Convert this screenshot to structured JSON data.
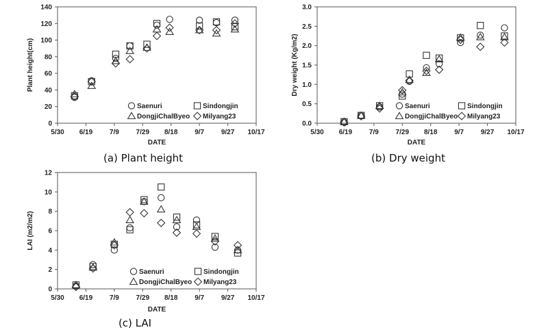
{
  "chart_data": [
    {
      "type": "scatter",
      "caption": "(a) Plant height",
      "xlabel": "DATE",
      "ylabel": "Plant height(cm)",
      "xticks": [
        "5/30",
        "6/19",
        "7/9",
        "7/29",
        "8/18",
        "9/7",
        "9/27",
        "10/17"
      ],
      "yticks": [
        "0",
        "20",
        "40",
        "60",
        "80",
        "100",
        "120",
        "140"
      ],
      "xlim": [
        0,
        140
      ],
      "ylim": [
        0,
        140
      ],
      "legend": "bottom-right",
      "series": [
        {
          "name": "Saenuri",
          "marker": "circle",
          "points": [
            [
              12,
              31
            ],
            [
              24,
              51
            ],
            [
              41,
              78
            ],
            [
              51,
              93
            ],
            [
              70,
              118
            ],
            [
              79,
              125
            ],
            [
              100,
              124
            ],
            [
              112,
              121
            ],
            [
              125,
              124
            ]
          ]
        },
        {
          "name": "Sindongjin",
          "marker": "square",
          "points": [
            [
              12,
              33
            ],
            [
              24,
              50
            ],
            [
              41,
              83
            ],
            [
              51,
              93
            ],
            [
              63,
              95
            ],
            [
              70,
              120
            ],
            [
              100,
              117
            ],
            [
              112,
              122
            ],
            [
              125,
              116
            ]
          ]
        },
        {
          "name": "DongjiChalByeo",
          "marker": "triangle",
          "points": [
            [
              12,
              35
            ],
            [
              24,
              45
            ],
            [
              41,
              75
            ],
            [
              51,
              87
            ],
            [
              63,
              91
            ],
            [
              70,
              113
            ],
            [
              79,
              110
            ],
            [
              100,
              112
            ],
            [
              112,
              108
            ],
            [
              125,
              113
            ]
          ]
        },
        {
          "name": "Milyang23",
          "marker": "diamond",
          "points": [
            [
              12,
              32
            ],
            [
              24,
              50
            ],
            [
              41,
              72
            ],
            [
              51,
              77
            ],
            [
              63,
              90
            ],
            [
              70,
              105
            ],
            [
              79,
              115
            ],
            [
              100,
              112
            ],
            [
              112,
              112
            ],
            [
              125,
              120
            ]
          ]
        }
      ]
    },
    {
      "type": "scatter",
      "caption": "(b) Dry weight",
      "xlabel": "DATE",
      "ylabel": "Dry weight (Kg/m2)",
      "xticks": [
        "5/30",
        "6/19",
        "7/9",
        "7/29",
        "8/18",
        "9/7",
        "9/27",
        "10/17"
      ],
      "yticks": [
        "0.0",
        "0.5",
        "1.0",
        "1.5",
        "2.0",
        "2.5",
        "3.0"
      ],
      "xlim": [
        0,
        140
      ],
      "ylim": [
        0,
        3.0
      ],
      "legend": "bottom-right",
      "series": [
        {
          "name": "Saenuri",
          "marker": "circle",
          "points": [
            [
              19,
              0.03
            ],
            [
              31,
              0.2
            ],
            [
              44,
              0.42
            ],
            [
              60,
              0.75
            ],
            [
              65,
              1.08
            ],
            [
              77,
              1.43
            ],
            [
              86,
              1.53
            ],
            [
              101,
              2.08
            ],
            [
              115,
              2.27
            ],
            [
              132,
              2.46
            ]
          ]
        },
        {
          "name": "Sindongjin",
          "marker": "square",
          "points": [
            [
              19,
              0.04
            ],
            [
              31,
              0.2
            ],
            [
              44,
              0.45
            ],
            [
              60,
              0.7
            ],
            [
              65,
              1.27
            ],
            [
              77,
              1.75
            ],
            [
              86,
              1.68
            ],
            [
              101,
              2.2
            ],
            [
              115,
              2.52
            ],
            [
              132,
              2.25
            ]
          ]
        },
        {
          "name": "DongjiChalByeo",
          "marker": "triangle",
          "points": [
            [
              19,
              0.04
            ],
            [
              31,
              0.2
            ],
            [
              44,
              0.45
            ],
            [
              60,
              0.8
            ],
            [
              65,
              1.12
            ],
            [
              77,
              1.3
            ],
            [
              86,
              1.65
            ],
            [
              101,
              2.21
            ],
            [
              115,
              2.22
            ],
            [
              132,
              2.22
            ]
          ]
        },
        {
          "name": "Milyang23",
          "marker": "diamond",
          "points": [
            [
              19,
              0.02
            ],
            [
              31,
              0.18
            ],
            [
              44,
              0.38
            ],
            [
              60,
              0.85
            ],
            [
              65,
              1.1
            ],
            [
              77,
              1.35
            ],
            [
              86,
              1.38
            ],
            [
              101,
              2.15
            ],
            [
              115,
              1.97
            ],
            [
              132,
              2.08
            ]
          ]
        }
      ]
    },
    {
      "type": "scatter",
      "caption": "(c) LAI",
      "xlabel": "DATE",
      "ylabel": "LAI (m2/m2)",
      "xticks": [
        "5/30",
        "6/19",
        "7/9",
        "7/29",
        "8/18",
        "9/7",
        "9/27",
        "10/17"
      ],
      "yticks": [
        "0",
        "2",
        "4",
        "6",
        "8",
        "10",
        "12"
      ],
      "xlim": [
        0,
        140
      ],
      "ylim": [
        0,
        12
      ],
      "legend": "bottom-right",
      "series": [
        {
          "name": "Saenuri",
          "marker": "circle",
          "points": [
            [
              13,
              0.3
            ],
            [
              25,
              2.5
            ],
            [
              40,
              4.0
            ],
            [
              51,
              6.3
            ],
            [
              61,
              9.0
            ],
            [
              73,
              9.4
            ],
            [
              84,
              6.4
            ],
            [
              98,
              7.1
            ],
            [
              111,
              4.3
            ],
            [
              127,
              4.0
            ]
          ]
        },
        {
          "name": "Sindongjin",
          "marker": "square",
          "points": [
            [
              13,
              0.4
            ],
            [
              25,
              2.3
            ],
            [
              40,
              4.6
            ],
            [
              51,
              6.1
            ],
            [
              61,
              9.2
            ],
            [
              73,
              10.5
            ],
            [
              84,
              7.4
            ],
            [
              98,
              6.6
            ],
            [
              111,
              5.4
            ],
            [
              127,
              3.7
            ]
          ]
        },
        {
          "name": "DongjiChalByeo",
          "marker": "triangle",
          "points": [
            [
              13,
              0.4
            ],
            [
              25,
              2.2
            ],
            [
              40,
              4.8
            ],
            [
              51,
              7.1
            ],
            [
              61,
              9.0
            ],
            [
              73,
              8.2
            ],
            [
              84,
              7.1
            ],
            [
              98,
              6.4
            ],
            [
              111,
              5.2
            ],
            [
              127,
              4.0
            ]
          ]
        },
        {
          "name": "Milyang23",
          "marker": "diamond",
          "points": [
            [
              13,
              0.2
            ],
            [
              25,
              2.1
            ],
            [
              40,
              4.5
            ],
            [
              51,
              7.9
            ],
            [
              61,
              7.8
            ],
            [
              73,
              6.8
            ],
            [
              84,
              5.8
            ],
            [
              98,
              5.7
            ],
            [
              111,
              4.9
            ],
            [
              127,
              4.5
            ]
          ]
        }
      ]
    }
  ]
}
